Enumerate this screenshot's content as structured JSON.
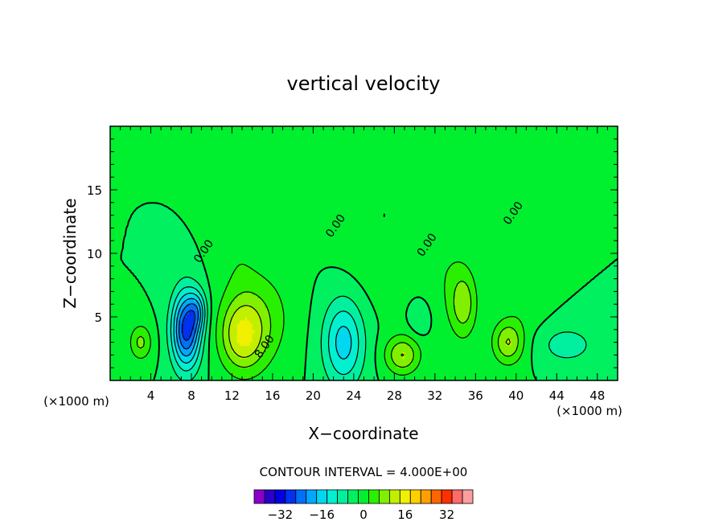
{
  "chart_data": {
    "type": "heatmap",
    "title": "vertical velocity",
    "xlabel": "X−coordinate",
    "ylabel": "Z−coordinate",
    "x_unit_left": "(×1000 m)",
    "x_unit_right": "(×1000 m)",
    "xlim": [
      0,
      50
    ],
    "ylim": [
      0,
      20
    ],
    "x_ticks": [
      4,
      8,
      12,
      16,
      20,
      24,
      28,
      32,
      36,
      40,
      44,
      48
    ],
    "y_ticks": [
      5,
      10,
      15
    ],
    "contour_interval_text": "CONTOUR INTERVAL =  4.000E+00",
    "contour_labels": [
      {
        "text": "0.00",
        "x": 9.5,
        "y": 10.0
      },
      {
        "text": "8.00",
        "x": 15.5,
        "y": 2.5
      },
      {
        "text": "0.00",
        "x": 22.5,
        "y": 12.0
      },
      {
        "text": "0.00",
        "x": 31.5,
        "y": 10.5
      },
      {
        "text": "0.00",
        "x": 40.0,
        "y": 13.0
      }
    ],
    "colorbar": {
      "levels": [
        -40,
        -36,
        -32,
        -28,
        -24,
        -20,
        -16,
        -12,
        -8,
        -4,
        0,
        4,
        8,
        12,
        16,
        20,
        24,
        28,
        32,
        36,
        40
      ],
      "tick_values": [
        -32,
        -16,
        0,
        16,
        32
      ],
      "tick_labels": [
        "−32",
        "−16",
        "0",
        "16",
        "32"
      ],
      "colors": [
        "#8a00c8",
        "#2a00c8",
        "#0000e0",
        "#0030f0",
        "#0070f8",
        "#00a8ff",
        "#00d8f0",
        "#00f0d0",
        "#00f0a0",
        "#00f060",
        "#00f030",
        "#28f000",
        "#80f000",
        "#c0f000",
        "#f0f000",
        "#ffd000",
        "#ffa000",
        "#ff6400",
        "#ff3000",
        "#ff6a6a",
        "#ff9e9e"
      ]
    },
    "features": [
      {
        "kind": "updraft",
        "x": 13.0,
        "y": 3.5,
        "rx": 2.2,
        "ry": 2.8,
        "peak": 14
      },
      {
        "kind": "updraft",
        "x": 15.0,
        "y": 5.0,
        "rx": 3.0,
        "ry": 3.8,
        "peak": 6
      },
      {
        "kind": "downdraft",
        "x": 7.5,
        "y": 4.0,
        "rx": 1.4,
        "ry": 3.0,
        "peak": -26
      },
      {
        "kind": "downdraft",
        "x": 8.6,
        "y": 5.5,
        "rx": 0.9,
        "ry": 1.5,
        "peak": -10
      },
      {
        "kind": "updraft",
        "x": 3.0,
        "y": 3.0,
        "rx": 1.1,
        "ry": 1.4,
        "peak": 9
      },
      {
        "kind": "downdraft",
        "x": 23.0,
        "y": 3.0,
        "rx": 2.0,
        "ry": 3.4,
        "peak": -14
      },
      {
        "kind": "updraft",
        "x": 28.8,
        "y": 2.0,
        "rx": 1.7,
        "ry": 1.5,
        "peak": 12
      },
      {
        "kind": "updraft",
        "x": 34.8,
        "y": 6.0,
        "rx": 1.3,
        "ry": 2.6,
        "peak": 10
      },
      {
        "kind": "updraft",
        "x": 39.2,
        "y": 3.0,
        "rx": 1.5,
        "ry": 1.7,
        "peak": 12
      },
      {
        "kind": "downdraft",
        "x": 45.0,
        "y": 2.8,
        "rx": 3.0,
        "ry": 1.6,
        "peak": -6
      },
      {
        "kind": "downdraft",
        "x": 30.5,
        "y": 5.0,
        "rx": 1.0,
        "ry": 1.4,
        "peak": -5
      },
      {
        "kind": "updraft",
        "x": 27.0,
        "y": 13.0,
        "rx": 4.0,
        "ry": 6.0,
        "peak": 4
      },
      {
        "kind": "updraft",
        "x": 12.5,
        "y": 11.0,
        "rx": 2.2,
        "ry": 6.0,
        "peak": 3
      },
      {
        "kind": "updraft",
        "x": 41.0,
        "y": 8.5,
        "rx": 2.0,
        "ry": 4.5,
        "peak": 4
      },
      {
        "kind": "updraft",
        "x": 33.0,
        "y": 8.5,
        "rx": 2.5,
        "ry": 4.5,
        "peak": 3
      }
    ]
  }
}
